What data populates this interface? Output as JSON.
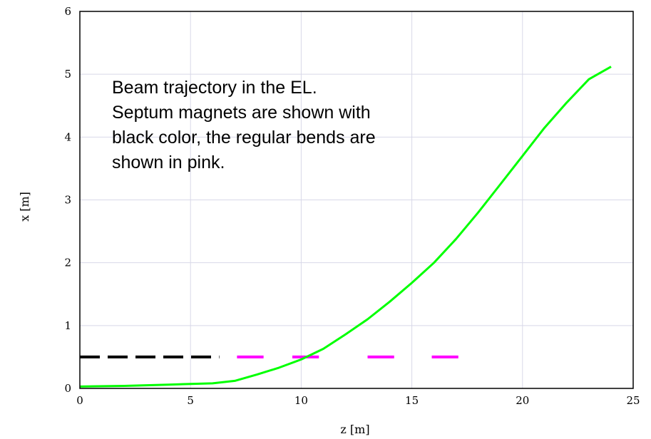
{
  "chart_data": {
    "type": "line",
    "title": "",
    "xlabel": "z [m]",
    "ylabel": "x [m]",
    "xlim": [
      0,
      25
    ],
    "ylim": [
      0,
      6
    ],
    "x_ticks": [
      0,
      5,
      10,
      15,
      20,
      25
    ],
    "y_ticks": [
      0,
      1,
      2,
      3,
      4,
      5,
      6
    ],
    "grid": true,
    "series": [
      {
        "color": "#00ff00",
        "style": "solid",
        "points": [
          [
            0,
            0.03
          ],
          [
            2,
            0.04
          ],
          [
            4,
            0.06
          ],
          [
            6,
            0.08
          ],
          [
            7,
            0.12
          ],
          [
            8,
            0.22
          ],
          [
            9,
            0.33
          ],
          [
            10,
            0.46
          ],
          [
            11,
            0.63
          ],
          [
            12,
            0.86
          ],
          [
            13,
            1.1
          ],
          [
            14,
            1.38
          ],
          [
            15,
            1.68
          ],
          [
            16,
            2.0
          ],
          [
            17,
            2.38
          ],
          [
            18,
            2.8
          ],
          [
            19,
            3.25
          ],
          [
            20,
            3.7
          ],
          [
            21,
            4.15
          ],
          [
            22,
            4.55
          ],
          [
            23,
            4.92
          ],
          [
            24,
            5.12
          ]
        ]
      }
    ],
    "segments": [
      {
        "kind": "septum",
        "color": "#000000",
        "x_start": 0,
        "x_end": 6.3,
        "y": 0.5
      },
      {
        "kind": "bend",
        "color": "#ff00ff",
        "x_start": 7.1,
        "x_end": 8.3,
        "y": 0.5
      },
      {
        "kind": "bend",
        "color": "#ff00ff",
        "x_start": 9.6,
        "x_end": 10.8,
        "y": 0.5
      },
      {
        "kind": "bend",
        "color": "#ff00ff",
        "x_start": 13.0,
        "x_end": 14.2,
        "y": 0.5
      },
      {
        "kind": "bend",
        "color": "#ff00ff",
        "x_start": 15.9,
        "x_end": 17.1,
        "y": 0.5
      }
    ],
    "annotation": {
      "lines": [
        "Beam trajectory in the EL.",
        "Septum magnets are shown with",
        "black color, the regular bends are",
        "shown in pink."
      ]
    }
  }
}
